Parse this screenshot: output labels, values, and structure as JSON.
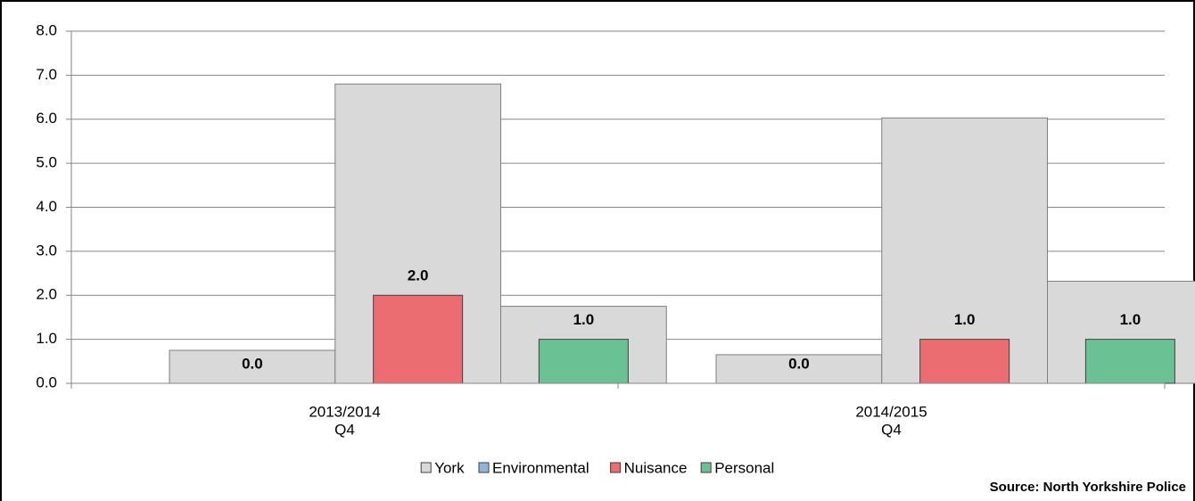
{
  "chart_data": {
    "type": "bar",
    "categories": [
      "2013/2014",
      "2014/2015"
    ],
    "sub_categories": [
      "Q4",
      "Q4"
    ],
    "series": [
      {
        "name": "York",
        "color": "#d9d9d9",
        "values": [
          [
            0.75,
            6.8,
            1.75
          ],
          [
            0.65,
            6.03,
            2.32
          ]
        ]
      },
      {
        "name": "Environmental",
        "color": "#95b3d7",
        "values": [
          0,
          0
        ],
        "value_labels": [
          "0.0",
          "0.0"
        ]
      },
      {
        "name": "Nuisance",
        "color": "#ec6d71",
        "values": [
          2,
          1
        ],
        "value_labels": [
          "2.0",
          "1.0"
        ]
      },
      {
        "name": "Personal",
        "color": "#6ac193",
        "values": [
          1,
          1
        ],
        "value_labels": [
          "1.0",
          "1.0"
        ]
      }
    ],
    "ylim": [
      0,
      8
    ],
    "yticks": [
      {
        "value": 0,
        "label": "0.0"
      },
      {
        "value": 1,
        "label": "1.0"
      },
      {
        "value": 2,
        "label": "2.0"
      },
      {
        "value": 3,
        "label": "3.0"
      },
      {
        "value": 4,
        "label": "4.0"
      },
      {
        "value": 5,
        "label": "5.0"
      },
      {
        "value": 6,
        "label": "6.0"
      },
      {
        "value": 7,
        "label": "7.0"
      },
      {
        "value": 8,
        "label": "8.0"
      }
    ],
    "grid": true,
    "legend": "bottom",
    "source": "Source: North Yorkshire Police"
  }
}
